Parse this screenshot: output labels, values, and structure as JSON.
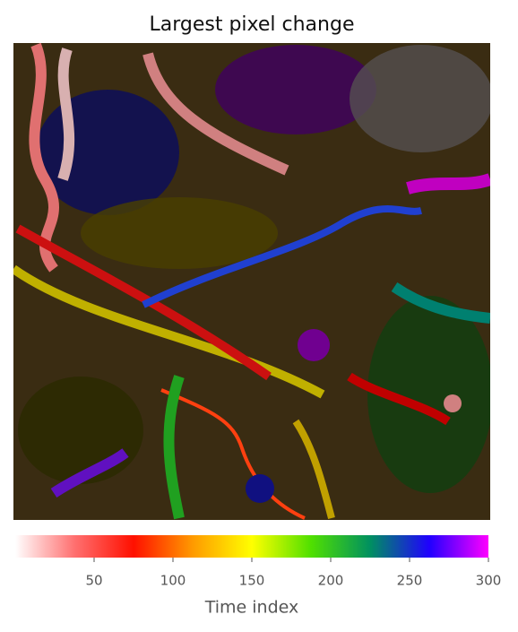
{
  "chart_data": {
    "type": "image",
    "title": "Largest pixel change",
    "colorbar": {
      "label": "Time index",
      "lim": [
        0,
        300
      ],
      "ticks": [
        50,
        100,
        150,
        200,
        250,
        300
      ],
      "colors": [
        "#ffffff",
        "#ff7070",
        "#ff1000",
        "#ff9a00",
        "#ffff00",
        "#50e000",
        "#009060",
        "#2000ff",
        "#ff00ff"
      ]
    }
  }
}
